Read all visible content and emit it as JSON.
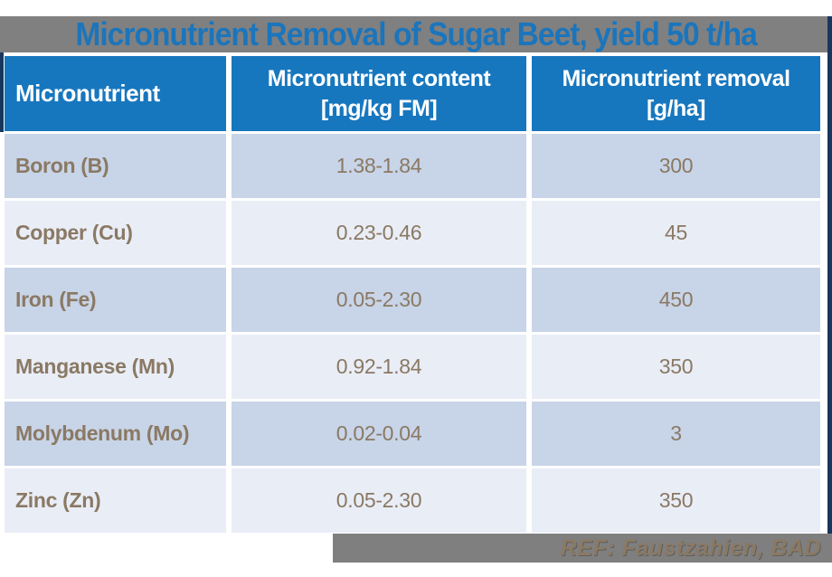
{
  "slide": {
    "title": "Micronutrient Removal of Sugar Beet, yield 50 t/ha",
    "footer_ref": "REF: Faustzahien, BAD"
  },
  "table": {
    "headers": [
      {
        "label": "Micronutrient"
      },
      {
        "label": "Micronutrient content\n[mg/kg FM]"
      },
      {
        "label": "Micronutrient removal\n[g/ha]"
      }
    ],
    "rows": [
      {
        "name": "Boron (B)",
        "content": "1.38-1.84",
        "removal": "300"
      },
      {
        "name": "Copper (Cu)",
        "content": "0.23-0.46",
        "removal": "45"
      },
      {
        "name": "Iron (Fe)",
        "content": "0.05-2.30",
        "removal": "450"
      },
      {
        "name": "Manganese (Mn)",
        "content": "0.92-1.84",
        "removal": "350"
      },
      {
        "name": "Molybdenum (Mo)",
        "content": "0.02-0.04",
        "removal": "3"
      },
      {
        "name": "Zinc (Zn)",
        "content": "0.05-2.30",
        "removal": "350"
      }
    ]
  },
  "colors": {
    "title_blue": "#1B75BC",
    "header_blue": "#1777BE",
    "row_dark": "#C8D4E7",
    "row_light": "#E9EDF6",
    "text_brown": "#8A7964",
    "banner_gray": "#808080",
    "footer_gray": "#7F7F7F",
    "edge_navy": "#17375D"
  }
}
